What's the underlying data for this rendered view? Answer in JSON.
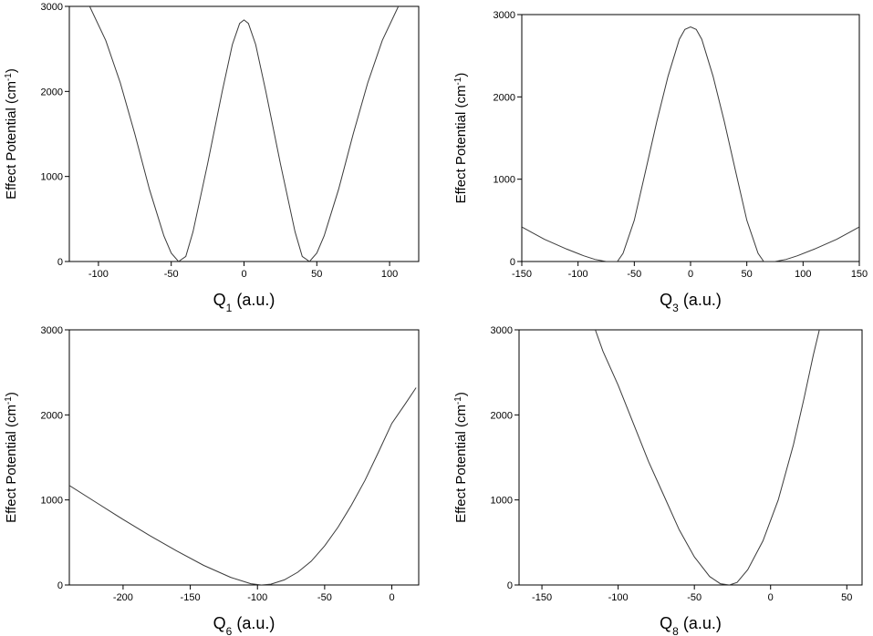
{
  "chart_data": [
    {
      "type": "line",
      "panel": "top-left",
      "ylabel": "Effect Potential (cm",
      "ylabel_sup": "-1",
      "ylabel_end": ")",
      "xlabel_base": "Q",
      "xlabel_sub": "1",
      "xlabel_rest": " (a.u.)",
      "xlim": [
        -120,
        120
      ],
      "ylim": [
        0,
        3000
      ],
      "xticks": [
        -100,
        -50,
        0,
        50,
        100
      ],
      "yticks": [
        0,
        1000,
        2000,
        3000
      ],
      "grid": false,
      "series": [
        {
          "color": "#3a3a3a",
          "points": [
            [
              -106,
              3000
            ],
            [
              -95,
              2600
            ],
            [
              -85,
              2100
            ],
            [
              -75,
              1500
            ],
            [
              -65,
              850
            ],
            [
              -55,
              300
            ],
            [
              -50,
              100
            ],
            [
              -45,
              0
            ],
            [
              -40,
              60
            ],
            [
              -35,
              350
            ],
            [
              -25,
              1150
            ],
            [
              -15,
              2000
            ],
            [
              -8,
              2550
            ],
            [
              -3,
              2800
            ],
            [
              0,
              2840
            ],
            [
              3,
              2800
            ],
            [
              8,
              2550
            ],
            [
              15,
              2000
            ],
            [
              25,
              1150
            ],
            [
              35,
              350
            ],
            [
              40,
              60
            ],
            [
              45,
              0
            ],
            [
              50,
              100
            ],
            [
              55,
              300
            ],
            [
              65,
              850
            ],
            [
              75,
              1500
            ],
            [
              85,
              2100
            ],
            [
              95,
              2600
            ],
            [
              106,
              3000
            ]
          ]
        }
      ]
    },
    {
      "type": "line",
      "panel": "top-right",
      "ylabel": "Effect Potential (cm",
      "ylabel_sup": "-1",
      "ylabel_end": ")",
      "xlabel_base": "Q",
      "xlabel_sub": "3",
      "xlabel_rest": " (a.u.)",
      "xlim": [
        -150,
        150
      ],
      "ylim": [
        0,
        3000
      ],
      "xticks": [
        -150,
        -100,
        -50,
        0,
        50,
        100,
        150
      ],
      "yticks": [
        0,
        1000,
        2000,
        3000
      ],
      "grid": false,
      "series": [
        {
          "color": "#3a3a3a",
          "points": [
            [
              -150,
              420
            ],
            [
              -130,
              270
            ],
            [
              -110,
              150
            ],
            [
              -95,
              70
            ],
            [
              -85,
              25
            ],
            [
              -75,
              0
            ],
            [
              -65,
              0
            ],
            [
              -60,
              100
            ],
            [
              -50,
              500
            ],
            [
              -40,
              1100
            ],
            [
              -30,
              1700
            ],
            [
              -20,
              2250
            ],
            [
              -10,
              2700
            ],
            [
              -5,
              2820
            ],
            [
              0,
              2850
            ],
            [
              5,
              2820
            ],
            [
              10,
              2700
            ],
            [
              20,
              2250
            ],
            [
              30,
              1700
            ],
            [
              40,
              1100
            ],
            [
              50,
              500
            ],
            [
              60,
              100
            ],
            [
              65,
              0
            ],
            [
              75,
              0
            ],
            [
              85,
              25
            ],
            [
              95,
              70
            ],
            [
              110,
              150
            ],
            [
              130,
              270
            ],
            [
              150,
              420
            ]
          ]
        }
      ]
    },
    {
      "type": "line",
      "panel": "bottom-left",
      "ylabel": "Effect Potential (cm",
      "ylabel_sup": "-1",
      "ylabel_end": ")",
      "xlabel_base": "Q",
      "xlabel_sub": "6",
      "xlabel_rest": " (a.u.)",
      "xlim": [
        -240,
        20
      ],
      "ylim": [
        0,
        3000
      ],
      "xticks": [
        -200,
        -150,
        -100,
        -50,
        0
      ],
      "yticks": [
        0,
        1000,
        2000,
        3000
      ],
      "grid": false,
      "series": [
        {
          "color": "#3a3a3a",
          "points": [
            [
              -240,
              1170
            ],
            [
              -220,
              970
            ],
            [
              -200,
              770
            ],
            [
              -180,
              580
            ],
            [
              -160,
              400
            ],
            [
              -140,
              230
            ],
            [
              -120,
              90
            ],
            [
              -105,
              15
            ],
            [
              -97,
              0
            ],
            [
              -90,
              10
            ],
            [
              -80,
              60
            ],
            [
              -70,
              150
            ],
            [
              -60,
              280
            ],
            [
              -50,
              460
            ],
            [
              -40,
              680
            ],
            [
              -30,
              940
            ],
            [
              -20,
              1230
            ],
            [
              -10,
              1560
            ],
            [
              0,
              1900
            ],
            [
              10,
              2130
            ],
            [
              18,
              2320
            ]
          ]
        }
      ]
    },
    {
      "type": "line",
      "panel": "bottom-right",
      "ylabel": "Effect Potential (cm",
      "ylabel_sup": "-1",
      "ylabel_end": ")",
      "xlabel_base": "Q",
      "xlabel_sub": "8",
      "xlabel_rest": " (a.u.)",
      "xlim": [
        -165,
        60
      ],
      "ylim": [
        0,
        3000
      ],
      "xticks": [
        -150,
        -100,
        -50,
        0,
        50
      ],
      "yticks": [
        0,
        1000,
        2000,
        3000
      ],
      "grid": false,
      "series": [
        {
          "color": "#3a3a3a",
          "points": [
            [
              -115,
              3000
            ],
            [
              -110,
              2750
            ],
            [
              -100,
              2350
            ],
            [
              -90,
              1900
            ],
            [
              -80,
              1450
            ],
            [
              -70,
              1050
            ],
            [
              -60,
              650
            ],
            [
              -50,
              330
            ],
            [
              -40,
              100
            ],
            [
              -33,
              15
            ],
            [
              -27,
              0
            ],
            [
              -22,
              30
            ],
            [
              -15,
              180
            ],
            [
              -5,
              520
            ],
            [
              5,
              1000
            ],
            [
              15,
              1650
            ],
            [
              22,
              2200
            ],
            [
              28,
              2700
            ],
            [
              32,
              3000
            ]
          ]
        }
      ]
    }
  ]
}
